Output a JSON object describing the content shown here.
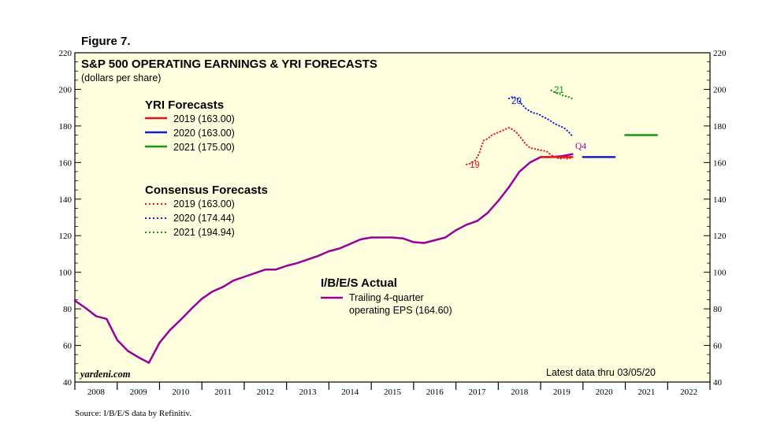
{
  "figure_label": "Figure 7.",
  "title": "S&P 500 OPERATING EARNINGS & YRI FORECASTS",
  "subtitle": "(dollars per share)",
  "source": "Source: I/B/E/S data by Refinitiv.",
  "watermark": "yardeni.com",
  "latest_note": "Latest data thru 03/05/20",
  "colors": {
    "plot_bg": "#ffffe0",
    "actual": "#990099",
    "y2019": "#e8141c",
    "y2020": "#1220c8",
    "y2021": "#119911"
  },
  "legend_yri": {
    "heading": "YRI Forecasts",
    "items": [
      "2019 (163.00)",
      "2020 (163.00)",
      "2021 (175.00)"
    ]
  },
  "legend_consensus": {
    "heading": "Consensus Forecasts",
    "items": [
      "2019 (163.00)",
      "2020 (174.44)",
      "2021 (194.94)"
    ]
  },
  "legend_actual": {
    "heading": "I/B/E/S Actual",
    "line1": "Trailing 4-quarter",
    "line2": "operating EPS (164.60)"
  },
  "annotations": {
    "c19": "19",
    "c20": "20",
    "c21": "21",
    "q4": "Q4"
  },
  "chart_data": {
    "type": "line",
    "x_range": [
      2008,
      2023
    ],
    "ylim": [
      40,
      220
    ],
    "y_ticks": [
      40,
      60,
      80,
      100,
      120,
      140,
      160,
      180,
      200,
      220
    ],
    "x_tick_labels": [
      "2008",
      "2009",
      "2010",
      "2011",
      "2012",
      "2013",
      "2014",
      "2015",
      "2016",
      "2017",
      "2018",
      "2019",
      "2020",
      "2021",
      "2022"
    ],
    "series": [
      {
        "name": "I/B/E/S Actual",
        "style": "solid",
        "x": [
          2008.0,
          2008.25,
          2008.5,
          2008.75,
          2009.0,
          2009.25,
          2009.5,
          2009.75,
          2010.0,
          2010.25,
          2010.5,
          2010.75,
          2011.0,
          2011.25,
          2011.5,
          2011.75,
          2012.0,
          2012.25,
          2012.5,
          2012.75,
          2013.0,
          2013.25,
          2013.5,
          2013.75,
          2014.0,
          2014.25,
          2014.5,
          2014.75,
          2015.0,
          2015.25,
          2015.5,
          2015.75,
          2016.0,
          2016.25,
          2016.5,
          2016.75,
          2017.0,
          2017.25,
          2017.5,
          2017.75,
          2018.0,
          2018.25,
          2018.5,
          2018.75,
          2019.0,
          2019.25,
          2019.5,
          2019.75
        ],
        "y": [
          84.5,
          80.5,
          76,
          74.5,
          63,
          57,
          53.5,
          50.5,
          61.5,
          68.5,
          74,
          80,
          85.5,
          89.5,
          92,
          95.5,
          97.5,
          99.5,
          101.5,
          101.5,
          103.5,
          105,
          107,
          109,
          111.5,
          113,
          115.5,
          118,
          119,
          119,
          119,
          118.5,
          116.5,
          116,
          117.5,
          119,
          123,
          126,
          128,
          132.5,
          139,
          146.5,
          155,
          160,
          163,
          163,
          163.5,
          164.6
        ]
      },
      {
        "name": "2019",
        "style": "dotted",
        "x": [
          2017.25,
          2017.35,
          2017.45,
          2017.55,
          2017.65,
          2017.75,
          2017.85,
          2017.95,
          2018.05,
          2018.15,
          2018.25,
          2018.35,
          2018.45,
          2018.55,
          2018.65,
          2018.75,
          2018.85,
          2018.95,
          2019.05,
          2019.15,
          2019.25,
          2019.35,
          2019.45,
          2019.55,
          2019.65,
          2019.75
        ],
        "y": [
          159,
          159.5,
          161,
          165,
          172,
          173,
          175,
          176,
          177,
          178,
          179,
          178,
          176,
          173,
          170,
          168,
          167.5,
          167,
          166.5,
          166,
          164,
          163,
          162,
          162.5,
          162,
          163
        ]
      },
      {
        "name": "2020",
        "style": "dotted",
        "x": [
          2018.25,
          2018.35,
          2018.45,
          2018.55,
          2018.65,
          2018.75,
          2018.85,
          2018.95,
          2019.05,
          2019.15,
          2019.25,
          2019.35,
          2019.45,
          2019.55,
          2019.65,
          2019.75
        ],
        "y": [
          195,
          196,
          195,
          192,
          189.5,
          188,
          187,
          186.5,
          185,
          184,
          182.5,
          181,
          180,
          179,
          177,
          174.4
        ]
      },
      {
        "name": "2021",
        "style": "dotted",
        "x": [
          2019.25,
          2019.35,
          2019.45,
          2019.55,
          2019.65,
          2019.75
        ],
        "y": [
          199.5,
          198,
          197.5,
          196.5,
          196,
          194.9
        ]
      },
      {
        "name": "YRI 2019",
        "style": "solid",
        "x": [
          2019.0,
          2019.75
        ],
        "y": [
          163,
          163
        ]
      },
      {
        "name": "YRI 2020",
        "style": "solid",
        "x": [
          2020.0,
          2020.75
        ],
        "y": [
          163,
          163
        ]
      },
      {
        "name": "YRI 2021",
        "style": "solid",
        "x": [
          2021.0,
          2021.75
        ],
        "y": [
          175,
          175
        ]
      }
    ]
  }
}
